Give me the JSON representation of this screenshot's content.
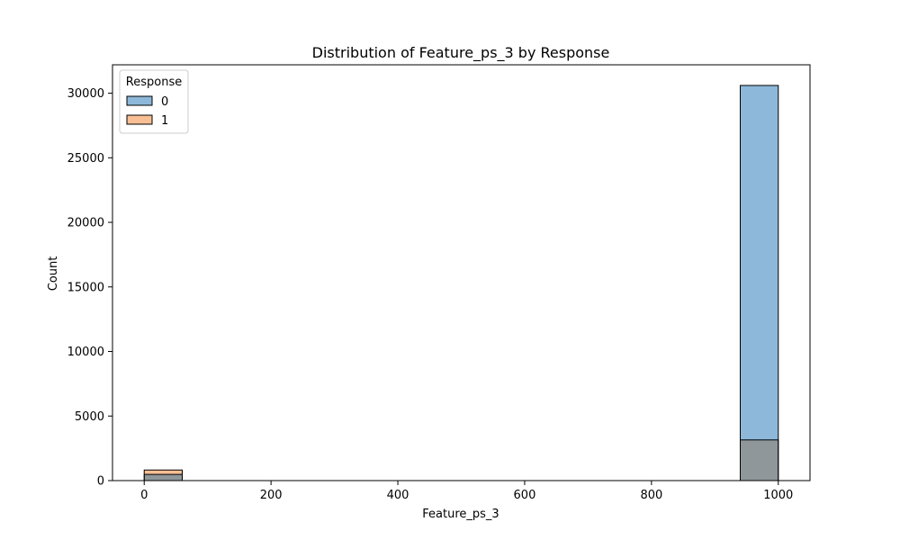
{
  "chart_data": {
    "type": "bar",
    "title": "Distribution of Feature_ps_3 by Response",
    "xlabel": "Feature_ps_3",
    "ylabel": "Count",
    "xlim": [
      -50,
      1050
    ],
    "ylim": [
      0,
      32200
    ],
    "x_ticks": [
      0,
      200,
      400,
      600,
      800,
      1000
    ],
    "y_ticks": [
      0,
      5000,
      10000,
      15000,
      20000,
      25000,
      30000
    ],
    "grid": false,
    "legend": {
      "title": "Response",
      "placement": "top-left"
    },
    "series": [
      {
        "name": "0",
        "color": "#8db8da",
        "bins": [
          {
            "x_start": 0,
            "x_end": 60,
            "count": 480
          },
          {
            "x_start": 940,
            "x_end": 1000,
            "count": 30600
          }
        ]
      },
      {
        "name": "1",
        "color": "#f8bf94",
        "bins": [
          {
            "x_start": 0,
            "x_end": 60,
            "count": 820
          },
          {
            "x_start": 940,
            "x_end": 1000,
            "count": 3150
          }
        ]
      }
    ],
    "overlap_color": "#8f979b"
  }
}
